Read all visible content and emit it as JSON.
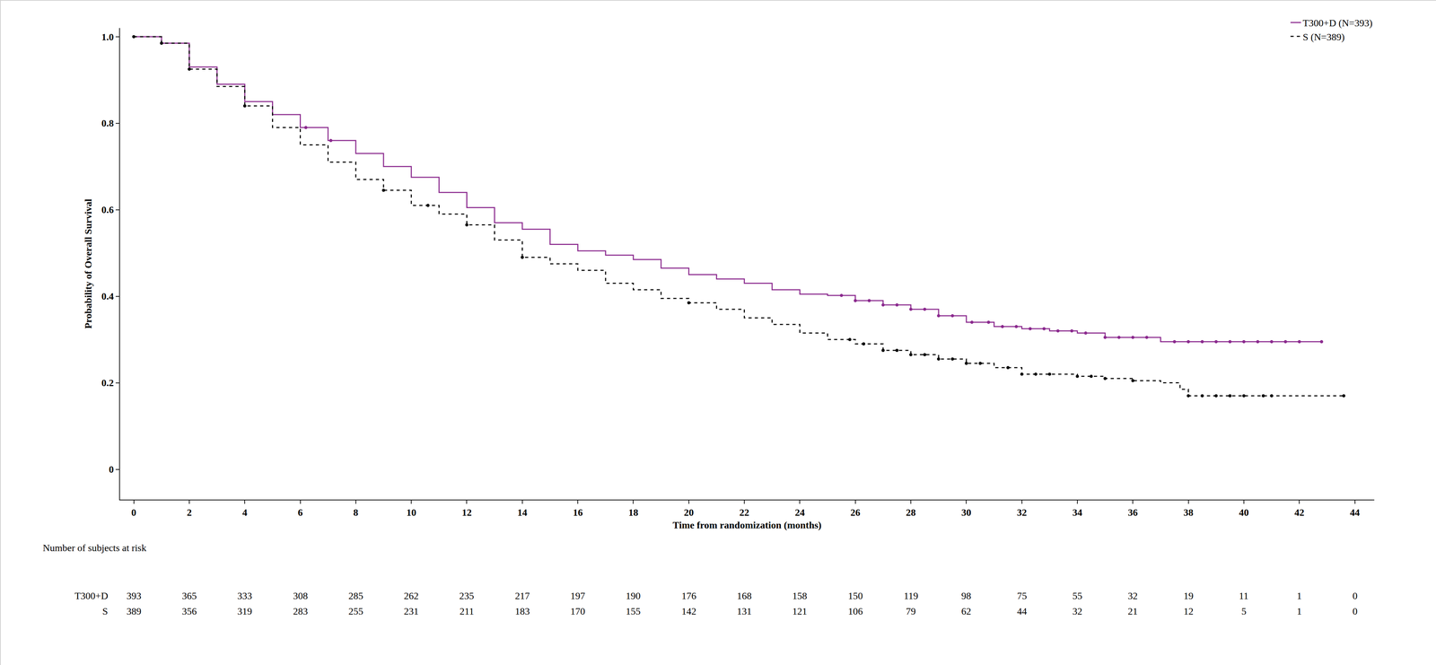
{
  "chart_data": {
    "type": "line",
    "x_label": "Time from randomization (months)",
    "y_label": "Probability of Overall Survival",
    "xlim": [
      -0.5,
      44.7
    ],
    "xticks": [
      0,
      2,
      4,
      6,
      8,
      10,
      12,
      14,
      16,
      18,
      20,
      22,
      24,
      26,
      28,
      30,
      32,
      34,
      36,
      38,
      40,
      42,
      44
    ],
    "ylim": [
      -0.07,
      1.02
    ],
    "yticks": [
      0,
      0.2,
      0.4,
      0.6,
      0.8,
      {
        "value": 1,
        "label": "1.0"
      }
    ],
    "grid": false,
    "legend": "top right",
    "series": [
      {
        "name": "T300+D (N=393)",
        "color": "#8b2a8e",
        "line_style": "solid",
        "marker": "circle",
        "x": [
          0,
          1,
          2,
          3,
          4,
          5,
          6,
          7,
          8,
          9,
          10,
          11,
          12,
          13,
          14,
          15,
          16,
          17,
          18,
          19,
          20,
          21,
          22,
          23,
          24,
          25,
          26,
          27,
          28,
          29,
          30,
          31,
          32,
          33,
          34,
          35,
          37,
          42.8
        ],
        "values": [
          1.0,
          0.985,
          0.93,
          0.89,
          0.85,
          0.82,
          0.79,
          0.76,
          0.73,
          0.7,
          0.675,
          0.64,
          0.605,
          0.57,
          0.555,
          0.52,
          0.505,
          0.495,
          0.485,
          0.465,
          0.45,
          0.44,
          0.43,
          0.415,
          0.405,
          0.402,
          0.39,
          0.38,
          0.37,
          0.355,
          0.34,
          0.33,
          0.325,
          0.32,
          0.315,
          0.305,
          0.295,
          0.295
        ],
        "censor_x": [
          6.2,
          7.1,
          25.5,
          26,
          26.5,
          27,
          27.5,
          28,
          28.5,
          29,
          29.5,
          30.2,
          30.8,
          31.3,
          31.8,
          32.3,
          32.8,
          33.3,
          33.8,
          34.3,
          35,
          35.5,
          36,
          36.5,
          37.5,
          38,
          38.5,
          39,
          39.5,
          40,
          40.5,
          41,
          41.5,
          42,
          42.8
        ],
        "censor_values": [
          0.79,
          0.76,
          0.402,
          0.39,
          0.39,
          0.38,
          0.38,
          0.37,
          0.37,
          0.355,
          0.355,
          0.34,
          0.34,
          0.33,
          0.33,
          0.325,
          0.325,
          0.32,
          0.32,
          0.315,
          0.305,
          0.305,
          0.305,
          0.305,
          0.295,
          0.295,
          0.295,
          0.295,
          0.295,
          0.295,
          0.295,
          0.295,
          0.295,
          0.295,
          0.295
        ]
      },
      {
        "name": "S (N=389)",
        "color": "#000000",
        "line_style": "dash",
        "marker": "circle",
        "x": [
          0,
          1,
          2,
          3,
          4,
          5,
          6,
          7,
          8,
          9,
          10,
          11,
          12,
          13,
          14,
          15,
          16,
          17,
          18,
          19,
          20,
          21,
          22,
          23,
          24,
          25,
          26,
          27,
          28,
          29,
          30,
          31,
          32,
          34,
          35,
          36,
          37,
          37.7,
          38,
          43.6
        ],
        "values": [
          1.0,
          0.985,
          0.925,
          0.885,
          0.84,
          0.79,
          0.75,
          0.71,
          0.67,
          0.645,
          0.61,
          0.59,
          0.565,
          0.53,
          0.49,
          0.475,
          0.46,
          0.43,
          0.415,
          0.395,
          0.385,
          0.37,
          0.35,
          0.335,
          0.315,
          0.3,
          0.29,
          0.275,
          0.265,
          0.255,
          0.245,
          0.235,
          0.22,
          0.215,
          0.21,
          0.205,
          0.2,
          0.185,
          0.17,
          0.17
        ],
        "censor_x": [
          0,
          1,
          2,
          4,
          9,
          10.6,
          12,
          14,
          20,
          25.8,
          26.3,
          27,
          27.5,
          28,
          28.5,
          29,
          29.5,
          30,
          30.5,
          31.5,
          32,
          32.5,
          33,
          34,
          34.5,
          35,
          36,
          38,
          38.5,
          39,
          39.5,
          40,
          40.7,
          41,
          43.6
        ],
        "censor_values": [
          1.0,
          0.985,
          0.925,
          0.84,
          0.645,
          0.61,
          0.565,
          0.49,
          0.385,
          0.3,
          0.29,
          0.275,
          0.275,
          0.265,
          0.265,
          0.255,
          0.255,
          0.245,
          0.245,
          0.235,
          0.22,
          0.22,
          0.22,
          0.215,
          0.215,
          0.21,
          0.205,
          0.17,
          0.17,
          0.17,
          0.17,
          0.17,
          0.17,
          0.17,
          0.17
        ]
      }
    ],
    "at_risk": {
      "title": "Number of subjects at risk",
      "x": [
        0,
        2,
        4,
        6,
        8,
        10,
        12,
        14,
        16,
        18,
        20,
        22,
        24,
        26,
        28,
        30,
        32,
        34,
        36,
        38,
        40,
        42,
        44
      ],
      "rows": [
        {
          "label": "T300+D",
          "values": [
            393,
            365,
            333,
            308,
            285,
            262,
            235,
            217,
            197,
            190,
            176,
            168,
            158,
            150,
            119,
            98,
            75,
            55,
            32,
            19,
            11,
            1,
            0
          ]
        },
        {
          "label": "S",
          "values": [
            389,
            356,
            319,
            283,
            255,
            231,
            211,
            183,
            170,
            155,
            142,
            131,
            121,
            106,
            79,
            62,
            44,
            32,
            21,
            12,
            5,
            1,
            0
          ]
        }
      ]
    }
  }
}
